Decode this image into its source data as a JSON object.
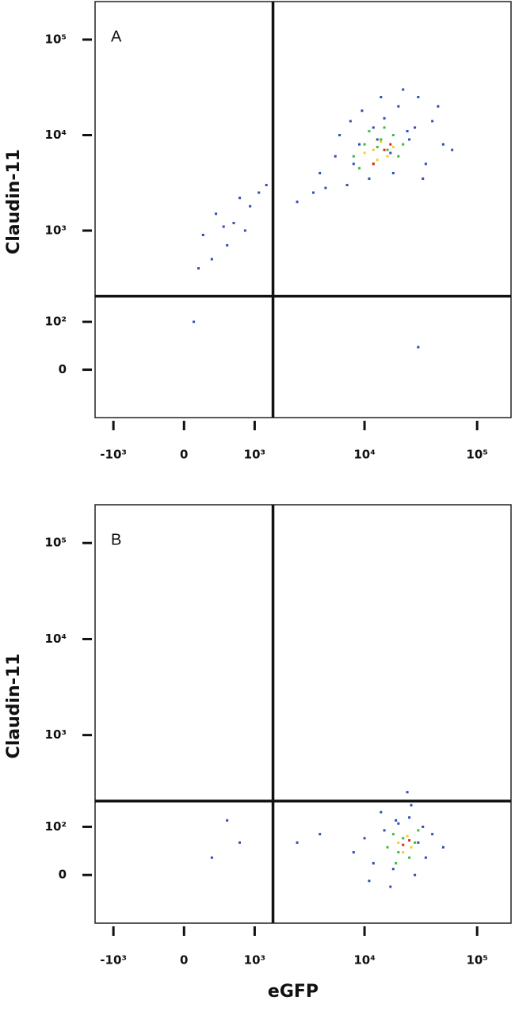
{
  "chart_data": [
    {
      "type": "scatter",
      "panel_label": "A",
      "y_label": "Claudin-11",
      "xscale": "biexponential",
      "yscale": "biexponential",
      "xlim": [
        -1500,
        200000
      ],
      "ylim": [
        -100,
        250000
      ],
      "xticks": [
        {
          "value": -1000,
          "label": "-10³"
        },
        0,
        {
          "value": 1000,
          "label": "10³"
        },
        {
          "value": 10000,
          "label": "10⁴"
        },
        {
          "value": 100000,
          "label": "10⁵"
        }
      ],
      "yticks": [
        0,
        {
          "value": 100,
          "label": "10²"
        },
        {
          "value": 1000,
          "label": "10³"
        },
        {
          "value": 10000,
          "label": "10⁴"
        },
        {
          "value": 100000,
          "label": "10⁵"
        }
      ],
      "gate_x": 1500,
      "gate_y": 200,
      "series": [
        {
          "color": "#2d4fb5",
          "x": [
            4000,
            5500,
            7000,
            9000,
            12000,
            15000,
            20000,
            25000,
            30000,
            40000,
            50000,
            3500,
            6000,
            8000,
            11000,
            14000,
            18000,
            22000,
            28000,
            35000,
            60000,
            2500,
            4500,
            9500,
            13000,
            17000,
            24000,
            33000,
            45000,
            7500,
            200,
            350,
            500,
            700,
            900,
            1100,
            300,
            600,
            800,
            1300,
            150,
            450,
            30000,
            100
          ],
          "y": [
            4000,
            6000,
            3000,
            8000,
            12000,
            15000,
            20000,
            9000,
            25000,
            14000,
            8000,
            2500,
            10000,
            5000,
            3500,
            25000,
            4000,
            30000,
            12000,
            5000,
            7000,
            2000,
            2800,
            18000,
            9000,
            6500,
            11000,
            3500,
            20000,
            14000,
            900,
            1500,
            700,
            2200,
            1800,
            2500,
            500,
            1200,
            1000,
            3000,
            400,
            1100,
            40,
            100
          ]
        },
        {
          "color": "#3fb84a",
          "x": [
            8000,
            10000,
            12000,
            14000,
            16000,
            18000,
            20000,
            9000,
            11000,
            13000,
            15000,
            22000
          ],
          "y": [
            6000,
            8000,
            5000,
            9000,
            7000,
            10000,
            6000,
            4500,
            11000,
            7500,
            12000,
            8000
          ]
        },
        {
          "color": "#f2d21b",
          "x": [
            10000,
            12000,
            14000,
            16000,
            18000,
            13000
          ],
          "y": [
            6500,
            7000,
            8500,
            6000,
            7500,
            5500
          ]
        },
        {
          "color": "#e0261f",
          "x": [
            12000,
            15000,
            17000
          ],
          "y": [
            5000,
            7000,
            8000
          ]
        }
      ]
    },
    {
      "type": "scatter",
      "panel_label": "B",
      "y_label": "Claudin-11",
      "x_label": "eGFP",
      "xscale": "biexponential",
      "yscale": "biexponential",
      "xlim": [
        -1500,
        200000
      ],
      "ylim": [
        -100,
        250000
      ],
      "xticks": [
        {
          "value": -1000,
          "label": "-10³"
        },
        0,
        {
          "value": 1000,
          "label": "10³"
        },
        {
          "value": 10000,
          "label": "10⁴"
        },
        {
          "value": 100000,
          "label": "10⁵"
        }
      ],
      "yticks": [
        0,
        {
          "value": 100,
          "label": "10²"
        },
        {
          "value": 1000,
          "label": "10³"
        },
        {
          "value": 10000,
          "label": "10⁴"
        },
        {
          "value": 100000,
          "label": "10⁵"
        }
      ],
      "gate_x": 1500,
      "gate_y": 200,
      "series": [
        {
          "color": "#2d4fb5",
          "x": [
            8000,
            10000,
            12000,
            15000,
            18000,
            20000,
            25000,
            30000,
            35000,
            40000,
            50000,
            14000,
            22000,
            28000,
            17000,
            24000,
            33000,
            11000,
            19000,
            26000,
            500,
            700,
            300,
            2500,
            4000
          ],
          "y": [
            40,
            70,
            20,
            90,
            10,
            110,
            130,
            60,
            30,
            80,
            50,
            150,
            200,
            0,
            -20,
            250,
            100,
            -10,
            120,
            180,
            120,
            60,
            30,
            60,
            80
          ]
        },
        {
          "color": "#3fb84a",
          "x": [
            16000,
            18000,
            20000,
            22000,
            25000,
            28000,
            30000,
            19000
          ],
          "y": [
            50,
            80,
            40,
            70,
            30,
            60,
            90,
            20
          ]
        },
        {
          "color": "#f2d21b",
          "x": [
            20000,
            22000,
            24000,
            26000
          ],
          "y": [
            60,
            40,
            75,
            50
          ]
        },
        {
          "color": "#e0261f",
          "x": [
            22000,
            25000
          ],
          "y": [
            55,
            65
          ]
        }
      ]
    }
  ]
}
